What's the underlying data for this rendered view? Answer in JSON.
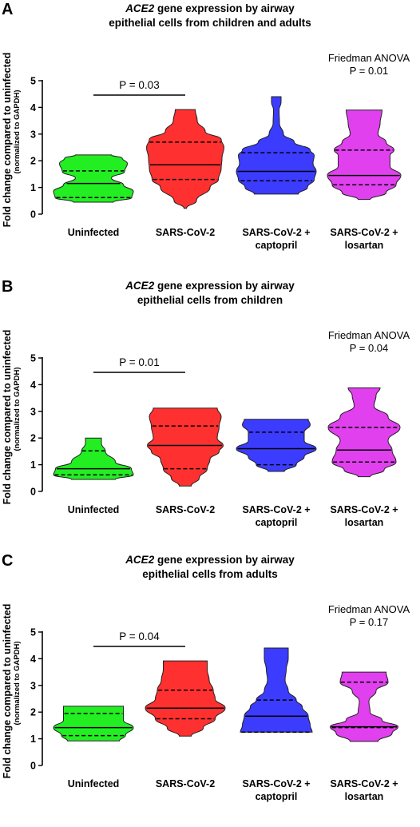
{
  "figure": {
    "ylabel_main": "Fold change compared to uninfected",
    "ylabel_sub": "(normalized to GAPDH)",
    "yticks": [
      "0",
      "1",
      "2",
      "3",
      "4",
      "5"
    ]
  },
  "chart_data": [
    {
      "type": "violin",
      "panel": "A",
      "title_italic": "ACE2",
      "title_rest": " gene expression by airway",
      "title_line2": "epithelial cells from children and adults",
      "stat_test": "Friedman ANOVA",
      "stat_p": "P = 0.01",
      "comparison_label": "P = 0.03",
      "ylim": [
        0,
        5
      ],
      "categories": [
        "Uninfected",
        "SARS-CoV-2",
        "SARS-CoV-2 +|captopril",
        "SARS-CoV-2 +|losartan"
      ],
      "colors": [
        "#22ee22",
        "#ff3030",
        "#3c3cff",
        "#e040ee"
      ],
      "series": [
        {
          "min": 0.45,
          "q1": 0.62,
          "median": 1.15,
          "q3": 1.62,
          "max": 2.22,
          "profile": [
            [
              0.45,
              0.5
            ],
            [
              0.62,
              0.96
            ],
            [
              0.85,
              1.0
            ],
            [
              1.1,
              0.75
            ],
            [
              1.35,
              0.45
            ],
            [
              1.6,
              0.78
            ],
            [
              1.9,
              0.85
            ],
            [
              2.1,
              0.72
            ],
            [
              2.22,
              0.45
            ]
          ]
        },
        {
          "min": 0.22,
          "q1": 1.3,
          "median": 1.85,
          "q3": 2.7,
          "max": 3.92,
          "profile": [
            [
              0.22,
              0.03
            ],
            [
              0.5,
              0.28
            ],
            [
              1.0,
              0.62
            ],
            [
              1.3,
              0.83
            ],
            [
              1.7,
              0.9
            ],
            [
              2.1,
              0.92
            ],
            [
              2.5,
              0.97
            ],
            [
              2.8,
              0.9
            ],
            [
              3.1,
              0.5
            ],
            [
              3.5,
              0.3
            ],
            [
              3.92,
              0.25
            ]
          ]
        },
        {
          "min": 0.75,
          "q1": 1.25,
          "median": 1.6,
          "q3": 2.3,
          "max": 4.4,
          "profile": [
            [
              0.75,
              0.55
            ],
            [
              1.0,
              0.78
            ],
            [
              1.3,
              0.95
            ],
            [
              1.6,
              1.0
            ],
            [
              1.9,
              0.92
            ],
            [
              2.2,
              0.95
            ],
            [
              2.4,
              0.85
            ],
            [
              2.7,
              0.45
            ],
            [
              3.0,
              0.18
            ],
            [
              3.4,
              0.08
            ],
            [
              3.9,
              0.07
            ],
            [
              4.2,
              0.12
            ],
            [
              4.4,
              0.12
            ]
          ]
        },
        {
          "min": 0.55,
          "q1": 1.1,
          "median": 1.45,
          "q3": 2.4,
          "max": 3.9,
          "profile": [
            [
              0.55,
              0.15
            ],
            [
              0.8,
              0.55
            ],
            [
              1.1,
              0.8
            ],
            [
              1.45,
              0.92
            ],
            [
              1.8,
              0.65
            ],
            [
              2.2,
              0.65
            ],
            [
              2.4,
              0.75
            ],
            [
              2.7,
              0.55
            ],
            [
              3.0,
              0.35
            ],
            [
              3.4,
              0.4
            ],
            [
              3.9,
              0.45
            ]
          ]
        }
      ]
    },
    {
      "type": "violin",
      "panel": "B",
      "title_italic": "ACE2",
      "title_rest": " gene expression by airway",
      "title_line2": "epithelial cells from children",
      "stat_test": "Friedman ANOVA",
      "stat_p": "P = 0.04",
      "comparison_label": "P = 0.01",
      "ylim": [
        0,
        5
      ],
      "categories": [
        "Uninfected",
        "SARS-CoV-2",
        "SARS-CoV-2 +|captopril",
        "SARS-CoV-2 +|losartan"
      ],
      "colors": [
        "#22ee22",
        "#ff3030",
        "#3c3cff",
        "#e040ee"
      ],
      "series": [
        {
          "min": 0.45,
          "q1": 0.62,
          "median": 0.85,
          "q3": 1.52,
          "max": 2.0,
          "profile": [
            [
              0.45,
              0.55
            ],
            [
              0.62,
              1.0
            ],
            [
              0.85,
              0.95
            ],
            [
              1.1,
              0.55
            ],
            [
              1.5,
              0.3
            ],
            [
              1.8,
              0.2
            ],
            [
              2.0,
              0.2
            ]
          ]
        },
        {
          "min": 0.2,
          "q1": 0.85,
          "median": 1.72,
          "q3": 2.45,
          "max": 3.12,
          "profile": [
            [
              0.2,
              0.15
            ],
            [
              0.5,
              0.35
            ],
            [
              0.85,
              0.55
            ],
            [
              1.2,
              0.62
            ],
            [
              1.5,
              0.85
            ],
            [
              1.72,
              0.95
            ],
            [
              2.0,
              0.8
            ],
            [
              2.45,
              0.85
            ],
            [
              2.8,
              0.9
            ],
            [
              3.12,
              0.8
            ]
          ]
        },
        {
          "min": 0.75,
          "q1": 1.0,
          "median": 1.6,
          "q3": 2.22,
          "max": 2.7,
          "profile": [
            [
              0.75,
              0.2
            ],
            [
              1.0,
              0.5
            ],
            [
              1.3,
              0.7
            ],
            [
              1.6,
              1.0
            ],
            [
              1.9,
              0.7
            ],
            [
              2.22,
              0.7
            ],
            [
              2.5,
              0.85
            ],
            [
              2.7,
              0.8
            ]
          ]
        },
        {
          "min": 0.55,
          "q1": 1.1,
          "median": 1.55,
          "q3": 2.4,
          "max": 3.88,
          "profile": [
            [
              0.55,
              0.15
            ],
            [
              0.8,
              0.5
            ],
            [
              1.1,
              0.8
            ],
            [
              1.55,
              0.7
            ],
            [
              1.9,
              0.6
            ],
            [
              2.4,
              0.9
            ],
            [
              2.8,
              0.6
            ],
            [
              3.2,
              0.25
            ],
            [
              3.6,
              0.3
            ],
            [
              3.88,
              0.4
            ]
          ]
        }
      ]
    },
    {
      "type": "violin",
      "panel": "C",
      "title_italic": "ACE2",
      "title_rest": " gene expression by airway",
      "title_line2": "epithelial cells from adults",
      "stat_test": "Friedman ANOVA",
      "stat_p": "P = 0.17",
      "comparison_label": "P = 0.04",
      "ylim": [
        0,
        5
      ],
      "categories": [
        "Uninfected",
        "SARS-CoV-2",
        "SARS-CoV-2 +|captopril",
        "SARS-CoV-2 +|losartan"
      ],
      "colors": [
        "#22ee22",
        "#ff3030",
        "#3c3cff",
        "#e040ee"
      ],
      "series": [
        {
          "min": 0.92,
          "q1": 1.12,
          "median": 1.42,
          "q3": 1.95,
          "max": 2.22,
          "profile": [
            [
              0.92,
              0.65
            ],
            [
              1.12,
              0.8
            ],
            [
              1.42,
              1.0
            ],
            [
              1.7,
              0.75
            ],
            [
              1.95,
              0.75
            ],
            [
              2.22,
              0.75
            ]
          ]
        },
        {
          "min": 1.1,
          "q1": 1.75,
          "median": 2.15,
          "q3": 2.82,
          "max": 3.92,
          "profile": [
            [
              1.1,
              0.15
            ],
            [
              1.4,
              0.45
            ],
            [
              1.75,
              0.75
            ],
            [
              2.15,
              1.0
            ],
            [
              2.5,
              0.75
            ],
            [
              2.82,
              0.7
            ],
            [
              3.2,
              0.6
            ],
            [
              3.6,
              0.55
            ],
            [
              3.92,
              0.55
            ]
          ]
        },
        {
          "min": 1.25,
          "q1": 1.25,
          "median": 1.85,
          "q3": 2.45,
          "max": 4.4,
          "profile": [
            [
              1.25,
              0.9
            ],
            [
              1.5,
              0.85
            ],
            [
              1.85,
              0.8
            ],
            [
              2.2,
              0.65
            ],
            [
              2.45,
              0.5
            ],
            [
              2.8,
              0.3
            ],
            [
              3.2,
              0.22
            ],
            [
              3.6,
              0.25
            ],
            [
              4.0,
              0.3
            ],
            [
              4.4,
              0.3
            ]
          ]
        },
        {
          "min": 0.9,
          "q1": 1.42,
          "median": 1.45,
          "q3": 3.12,
          "max": 3.5,
          "profile": [
            [
              0.9,
              0.35
            ],
            [
              1.2,
              0.7
            ],
            [
              1.45,
              0.85
            ],
            [
              1.7,
              0.45
            ],
            [
              2.0,
              0.15
            ],
            [
              2.4,
              0.12
            ],
            [
              2.8,
              0.3
            ],
            [
              3.12,
              0.6
            ],
            [
              3.5,
              0.55
            ]
          ]
        }
      ]
    }
  ]
}
